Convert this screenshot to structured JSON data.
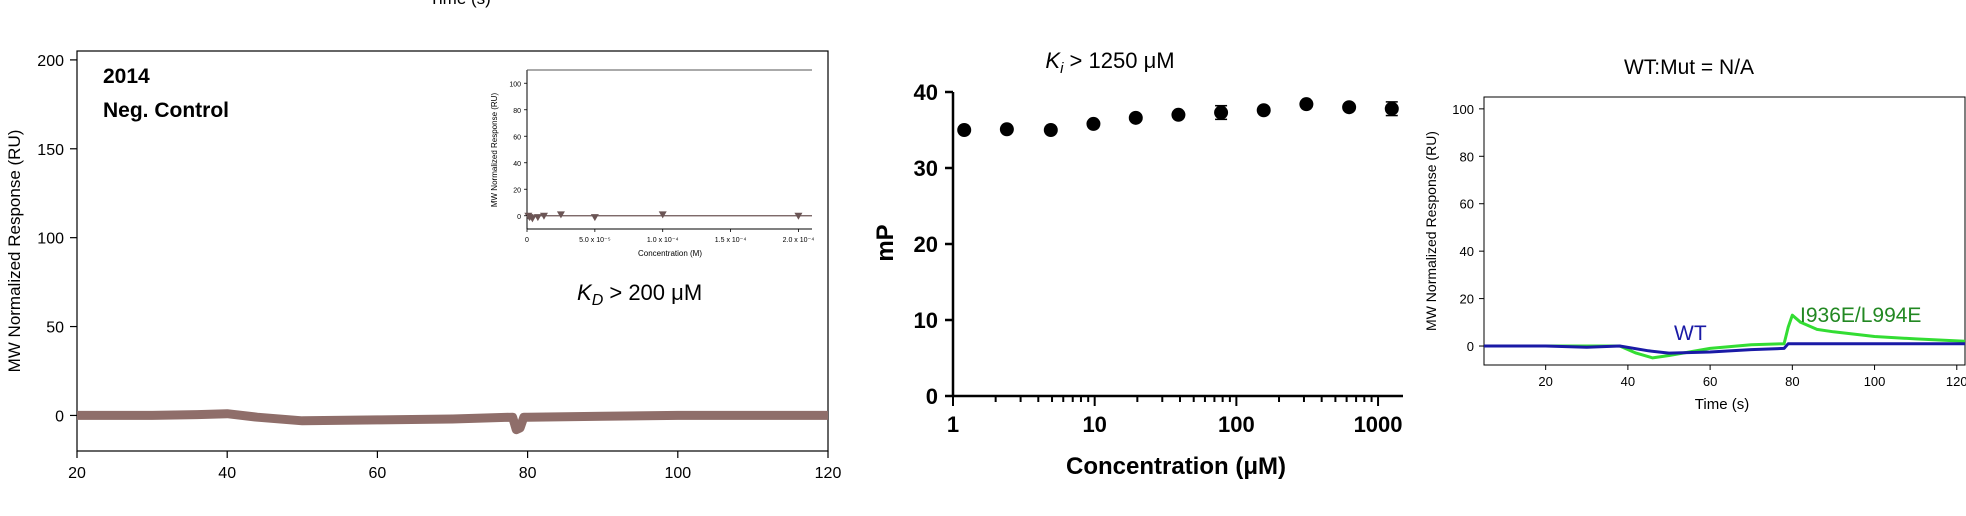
{
  "header_fragment": "Time (s)",
  "chart_data": [
    {
      "type": "line",
      "panel": "spr-sensorgram-neg-control",
      "annotations": {
        "line1": "2014",
        "line2": "Neg. Control",
        "kd_symbol": "K",
        "kd_sub": "D",
        "kd_rest": " > 200 μM"
      },
      "ylabel": "MW Normalized Response (RU)",
      "xlabel": "",
      "xlim": [
        20,
        120
      ],
      "ylim": [
        -20,
        205
      ],
      "xticks": [
        20,
        40,
        60,
        80,
        100,
        120
      ],
      "yticks": [
        0,
        50,
        100,
        150,
        200
      ],
      "color": "#8f6e6a",
      "series": [
        {
          "x": [
            20,
            30,
            36,
            40,
            44,
            50,
            60,
            70,
            78,
            78.5,
            79,
            79.5,
            80,
            90,
            100,
            110,
            120
          ],
          "y": [
            0,
            0,
            0.5,
            1,
            -1,
            -3,
            -2.5,
            -2,
            -1,
            -8,
            -7,
            -1,
            -1,
            -0.5,
            0,
            0,
            0
          ]
        }
      ],
      "inset": {
        "type": "scatter",
        "ylabel": "MW Normalized Response (RU)",
        "xlabel": "Concentration (M)",
        "xticks": [
          0,
          5e-05,
          0.0001,
          0.00015,
          0.0002
        ],
        "xtick_labels": [
          "0",
          "5.0 x 10⁻⁵",
          "1.0 x 10⁻⁴",
          "1.5 x 10⁻⁴",
          "2.0 x 10⁻⁴"
        ],
        "yticks": [
          0,
          20,
          40,
          60,
          80,
          100
        ],
        "xlim": [
          0,
          0.00021
        ],
        "ylim": [
          -10,
          110
        ],
        "x": [
          1e-06,
          2e-06,
          4e-06,
          8e-06,
          1.25e-05,
          2.5e-05,
          5e-05,
          0.0001,
          0.0002
        ],
        "y": [
          0,
          -1,
          -2,
          -1,
          0,
          1,
          -1,
          1,
          0
        ],
        "fit_y": 0
      }
    },
    {
      "type": "scatter",
      "panel": "fp-competition",
      "title_symbol": "K",
      "title_sub": "i",
      "title_rest": " > 1250 μM",
      "xlabel": "Concentration (μM)",
      "ylabel": "mP",
      "xscale": "log",
      "xlim": [
        1,
        1500
      ],
      "ylim": [
        0,
        40
      ],
      "xticks": [
        1,
        10,
        100,
        1000
      ],
      "yticks": [
        0,
        10,
        20,
        30,
        40
      ],
      "x": [
        1.2,
        2.4,
        4.9,
        9.8,
        19.5,
        39,
        78,
        156,
        312,
        625,
        1250
      ],
      "y": [
        35,
        35.1,
        35,
        35.8,
        36.6,
        37,
        37.3,
        37.6,
        38.4,
        38,
        37.8
      ],
      "err": [
        0.3,
        0.3,
        0.3,
        0.4,
        0.4,
        0.4,
        0.9,
        0.5,
        0.5,
        0.5,
        0.9
      ]
    },
    {
      "type": "line",
      "panel": "spr-sensorgram-wt-mut",
      "title": "WT:Mut = N/A",
      "xlabel": "Time (s)",
      "ylabel": "MW Normalized Response (RU)",
      "xlim": [
        5,
        122
      ],
      "ylim": [
        -8,
        105
      ],
      "xticks": [
        20,
        40,
        60,
        80,
        100,
        120
      ],
      "yticks": [
        0,
        20,
        40,
        60,
        80,
        100
      ],
      "series": [
        {
          "name": "WT",
          "color": "#1a1aa6",
          "x": [
            5,
            20,
            30,
            38,
            45,
            50,
            60,
            70,
            78,
            79,
            85,
            100,
            110,
            122
          ],
          "y": [
            0,
            0,
            -0.5,
            0,
            -2,
            -3,
            -2.5,
            -1.5,
            -1,
            1,
            1,
            1,
            1,
            1
          ]
        },
        {
          "name": "I936E/L994E",
          "color": "#33dd33",
          "x": [
            5,
            20,
            30,
            38,
            42,
            46,
            50,
            60,
            70,
            78,
            79,
            80,
            82,
            86,
            90,
            100,
            110,
            122
          ],
          "y": [
            0,
            0,
            0,
            0,
            -3,
            -5,
            -4,
            -1,
            0.5,
            1,
            8,
            13,
            10,
            7,
            6,
            4,
            3,
            2
          ]
        }
      ]
    }
  ]
}
